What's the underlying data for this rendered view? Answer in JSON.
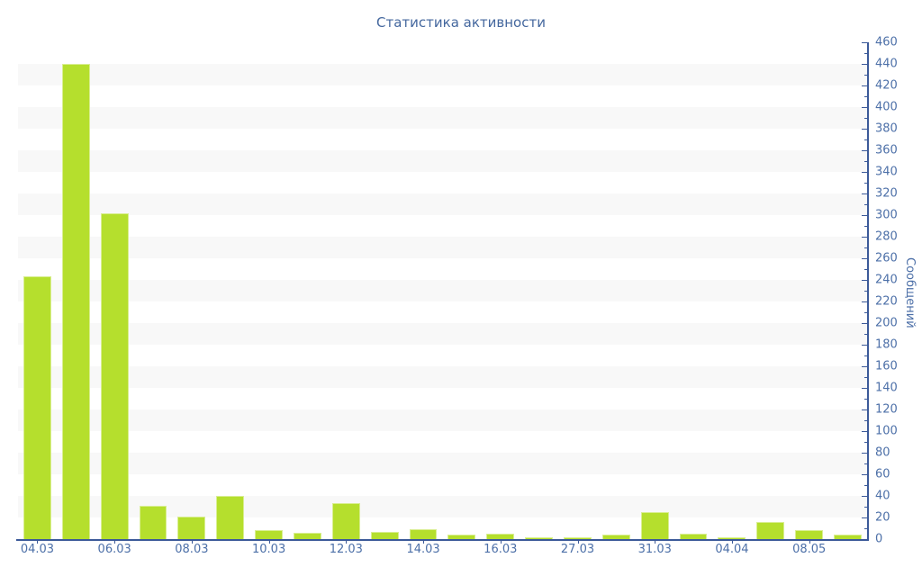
{
  "chart_data": {
    "type": "bar",
    "title": "Статистика активности",
    "ylabel": "Сообщений",
    "xlabel": "",
    "ylim": [
      0,
      460
    ],
    "y_major_step": 20,
    "y_minor_step": 10,
    "grid": "alternating horizontal bands (white / light gray), one band per 20 units",
    "legend_position": "none",
    "x_tick_labels": [
      "04.03",
      "06.03",
      "08.03",
      "10.03",
      "12.03",
      "14.03",
      "16.03",
      "27.03",
      "31.03",
      "04.04",
      "08.05"
    ],
    "bars": [
      {
        "label": "04.03",
        "value": 243
      },
      {
        "label": "",
        "value": 440
      },
      {
        "label": "06.03",
        "value": 302
      },
      {
        "label": "",
        "value": 31
      },
      {
        "label": "08.03",
        "value": 21
      },
      {
        "label": "",
        "value": 40
      },
      {
        "label": "10.03",
        "value": 8
      },
      {
        "label": "",
        "value": 6
      },
      {
        "label": "12.03",
        "value": 33
      },
      {
        "label": "",
        "value": 7
      },
      {
        "label": "14.03",
        "value": 9
      },
      {
        "label": "",
        "value": 4
      },
      {
        "label": "16.03",
        "value": 5
      },
      {
        "label": "",
        "value": 2
      },
      {
        "label": "27.03",
        "value": 2
      },
      {
        "label": "",
        "value": 4
      },
      {
        "label": "31.03",
        "value": 25
      },
      {
        "label": "",
        "value": 5
      },
      {
        "label": "04.04",
        "value": 2
      },
      {
        "label": "",
        "value": 16
      },
      {
        "label": "08.05",
        "value": 8
      },
      {
        "label": "",
        "value": 4
      }
    ],
    "colors": {
      "bar_fill": "#b5df2d",
      "bar_edge": "#d9ee92",
      "axis_line": "#3c5a99",
      "tick_label": "#4d70a8",
      "title": "#44679e",
      "band_gray": "#f8f8f8",
      "background": "#ffffff"
    }
  }
}
